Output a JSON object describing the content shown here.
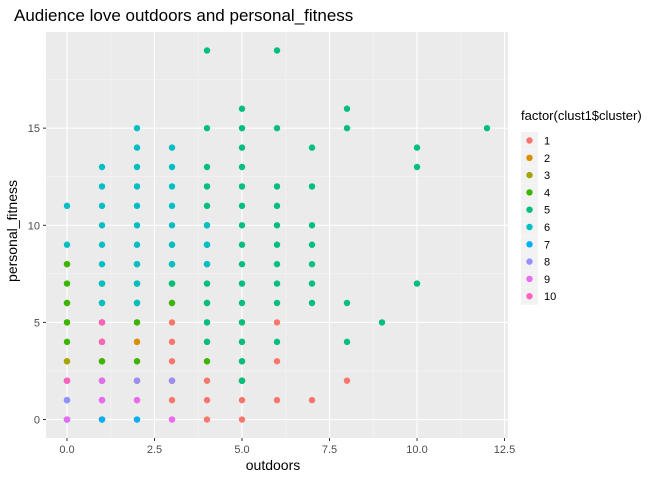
{
  "chart_data": {
    "type": "scatter",
    "title": "Audience love outdoors and personal_fitness",
    "xlabel": "outdoors",
    "ylabel": "personal_fitness",
    "xlim": [
      -0.6,
      12.6
    ],
    "ylim": [
      -0.95,
      19.95
    ],
    "x_ticks": [
      0,
      2.5,
      5,
      7.5,
      10,
      12.5
    ],
    "x_tick_labels": [
      "0.0",
      "2.5",
      "5.0",
      "7.5",
      "10.0",
      "12.5"
    ],
    "y_ticks": [
      0,
      5,
      10,
      15
    ],
    "y_tick_labels": [
      "0",
      "5",
      "10",
      "15"
    ],
    "background": "#ebebeb",
    "grid": true,
    "legend": {
      "title": "factor(clust1$cluster)",
      "position": "right",
      "entries": [
        {
          "label": "1",
          "color": "#F8766D"
        },
        {
          "label": "2",
          "color": "#D89000"
        },
        {
          "label": "3",
          "color": "#A3A500"
        },
        {
          "label": "4",
          "color": "#39B600"
        },
        {
          "label": "5",
          "color": "#00BF7D"
        },
        {
          "label": "6",
          "color": "#00BFC4"
        },
        {
          "label": "7",
          "color": "#00B0F6"
        },
        {
          "label": "8",
          "color": "#9590FF"
        },
        {
          "label": "9",
          "color": "#E76BF3"
        },
        {
          "label": "10",
          "color": "#FF62BC"
        }
      ]
    },
    "series": [
      {
        "cluster": "1",
        "color": "#F8766D",
        "points": [
          [
            1,
            0
          ],
          [
            1,
            1
          ],
          [
            1,
            2
          ],
          [
            1,
            3
          ],
          [
            1,
            4
          ],
          [
            2,
            0
          ],
          [
            2,
            1
          ],
          [
            2,
            2
          ],
          [
            2,
            3
          ],
          [
            2,
            4
          ],
          [
            2,
            5
          ],
          [
            3,
            0
          ],
          [
            3,
            1
          ],
          [
            3,
            2
          ],
          [
            3,
            3
          ],
          [
            3,
            4
          ],
          [
            3,
            5
          ],
          [
            3,
            6
          ],
          [
            4,
            0
          ],
          [
            4,
            1
          ],
          [
            4,
            2
          ],
          [
            4,
            3
          ],
          [
            4,
            4
          ],
          [
            4,
            5
          ],
          [
            5,
            0
          ],
          [
            5,
            1
          ],
          [
            5,
            2
          ],
          [
            5,
            4
          ],
          [
            5,
            5
          ],
          [
            6,
            1
          ],
          [
            6,
            3
          ],
          [
            6,
            5
          ],
          [
            7,
            1
          ],
          [
            8,
            2
          ]
        ]
      },
      {
        "cluster": "2",
        "color": "#D89000",
        "points": [
          [
            0,
            3
          ],
          [
            1,
            0
          ],
          [
            1,
            3
          ],
          [
            2,
            2
          ],
          [
            2,
            4
          ],
          [
            3,
            2
          ]
        ]
      },
      {
        "cluster": "3",
        "color": "#A3A500",
        "points": [
          [
            0,
            3
          ],
          [
            0,
            5
          ],
          [
            0,
            6
          ],
          [
            0,
            8
          ],
          [
            1,
            3
          ],
          [
            1,
            5
          ],
          [
            2,
            6
          ]
        ]
      },
      {
        "cluster": "4",
        "color": "#39B600",
        "points": [
          [
            0,
            4
          ],
          [
            0,
            5
          ],
          [
            0,
            6
          ],
          [
            0,
            7
          ],
          [
            0,
            8
          ],
          [
            1,
            2
          ],
          [
            1,
            3
          ],
          [
            1,
            4
          ],
          [
            1,
            5
          ],
          [
            1,
            6
          ],
          [
            1,
            7
          ],
          [
            2,
            3
          ],
          [
            2,
            5
          ],
          [
            2,
            6
          ],
          [
            2,
            7
          ],
          [
            3,
            6
          ],
          [
            3,
            7
          ],
          [
            4,
            3
          ],
          [
            4,
            6
          ],
          [
            5,
            2
          ],
          [
            5,
            3
          ]
        ]
      },
      {
        "cluster": "5",
        "color": "#00BF7D",
        "points": [
          [
            2,
            8
          ],
          [
            3,
            7
          ],
          [
            3,
            8
          ],
          [
            3,
            9
          ],
          [
            4,
            4
          ],
          [
            4,
            5
          ],
          [
            4,
            6
          ],
          [
            4,
            7
          ],
          [
            4,
            8
          ],
          [
            4,
            9
          ],
          [
            4,
            10
          ],
          [
            4,
            11
          ],
          [
            4,
            12
          ],
          [
            4,
            13
          ],
          [
            4,
            15
          ],
          [
            4,
            19
          ],
          [
            5,
            2
          ],
          [
            5,
            3
          ],
          [
            5,
            4
          ],
          [
            5,
            5
          ],
          [
            5,
            6
          ],
          [
            5,
            7
          ],
          [
            5,
            8
          ],
          [
            5,
            9
          ],
          [
            5,
            10
          ],
          [
            5,
            11
          ],
          [
            5,
            12
          ],
          [
            5,
            13
          ],
          [
            5,
            14
          ],
          [
            5,
            15
          ],
          [
            5,
            16
          ],
          [
            6,
            4
          ],
          [
            6,
            6
          ],
          [
            6,
            7
          ],
          [
            6,
            8
          ],
          [
            6,
            9
          ],
          [
            6,
            10
          ],
          [
            6,
            11
          ],
          [
            6,
            12
          ],
          [
            6,
            15
          ],
          [
            6,
            19
          ],
          [
            7,
            6
          ],
          [
            7,
            7
          ],
          [
            7,
            8
          ],
          [
            7,
            9
          ],
          [
            7,
            10
          ],
          [
            7,
            12
          ],
          [
            7,
            14
          ],
          [
            8,
            4
          ],
          [
            8,
            6
          ],
          [
            8,
            15
          ],
          [
            8,
            16
          ],
          [
            9,
            5
          ],
          [
            10,
            7
          ],
          [
            10,
            13
          ],
          [
            10,
            14
          ],
          [
            12,
            15
          ]
        ]
      },
      {
        "cluster": "6",
        "color": "#00BFC4",
        "points": [
          [
            0,
            9
          ],
          [
            0,
            11
          ],
          [
            1,
            6
          ],
          [
            1,
            7
          ],
          [
            1,
            8
          ],
          [
            1,
            9
          ],
          [
            1,
            10
          ],
          [
            1,
            11
          ],
          [
            1,
            12
          ],
          [
            1,
            13
          ],
          [
            2,
            6
          ],
          [
            2,
            7
          ],
          [
            2,
            8
          ],
          [
            2,
            9
          ],
          [
            2,
            10
          ],
          [
            2,
            11
          ],
          [
            2,
            12
          ],
          [
            2,
            13
          ],
          [
            2,
            14
          ],
          [
            2,
            15
          ],
          [
            3,
            8
          ],
          [
            3,
            9
          ],
          [
            3,
            10
          ],
          [
            3,
            11
          ],
          [
            3,
            12
          ],
          [
            3,
            13
          ],
          [
            3,
            14
          ],
          [
            4,
            8
          ],
          [
            4,
            9
          ],
          [
            4,
            10
          ]
        ]
      },
      {
        "cluster": "7",
        "color": "#00B0F6",
        "points": [
          [
            0,
            0
          ],
          [
            0,
            1
          ],
          [
            0,
            2
          ],
          [
            1,
            0
          ],
          [
            2,
            0
          ]
        ]
      },
      {
        "cluster": "8",
        "color": "#9590FF",
        "points": [
          [
            0,
            0
          ],
          [
            0,
            1
          ],
          [
            1,
            1
          ],
          [
            2,
            2
          ],
          [
            3,
            2
          ]
        ]
      },
      {
        "cluster": "9",
        "color": "#E76BF3",
        "points": [
          [
            0,
            0
          ],
          [
            0,
            2
          ],
          [
            1,
            1
          ],
          [
            1,
            2
          ],
          [
            1,
            5
          ],
          [
            2,
            1
          ],
          [
            3,
            0
          ]
        ]
      },
      {
        "cluster": "10",
        "color": "#FF62BC",
        "points": [
          [
            0,
            2
          ],
          [
            1,
            4
          ],
          [
            1,
            5
          ]
        ]
      }
    ]
  }
}
